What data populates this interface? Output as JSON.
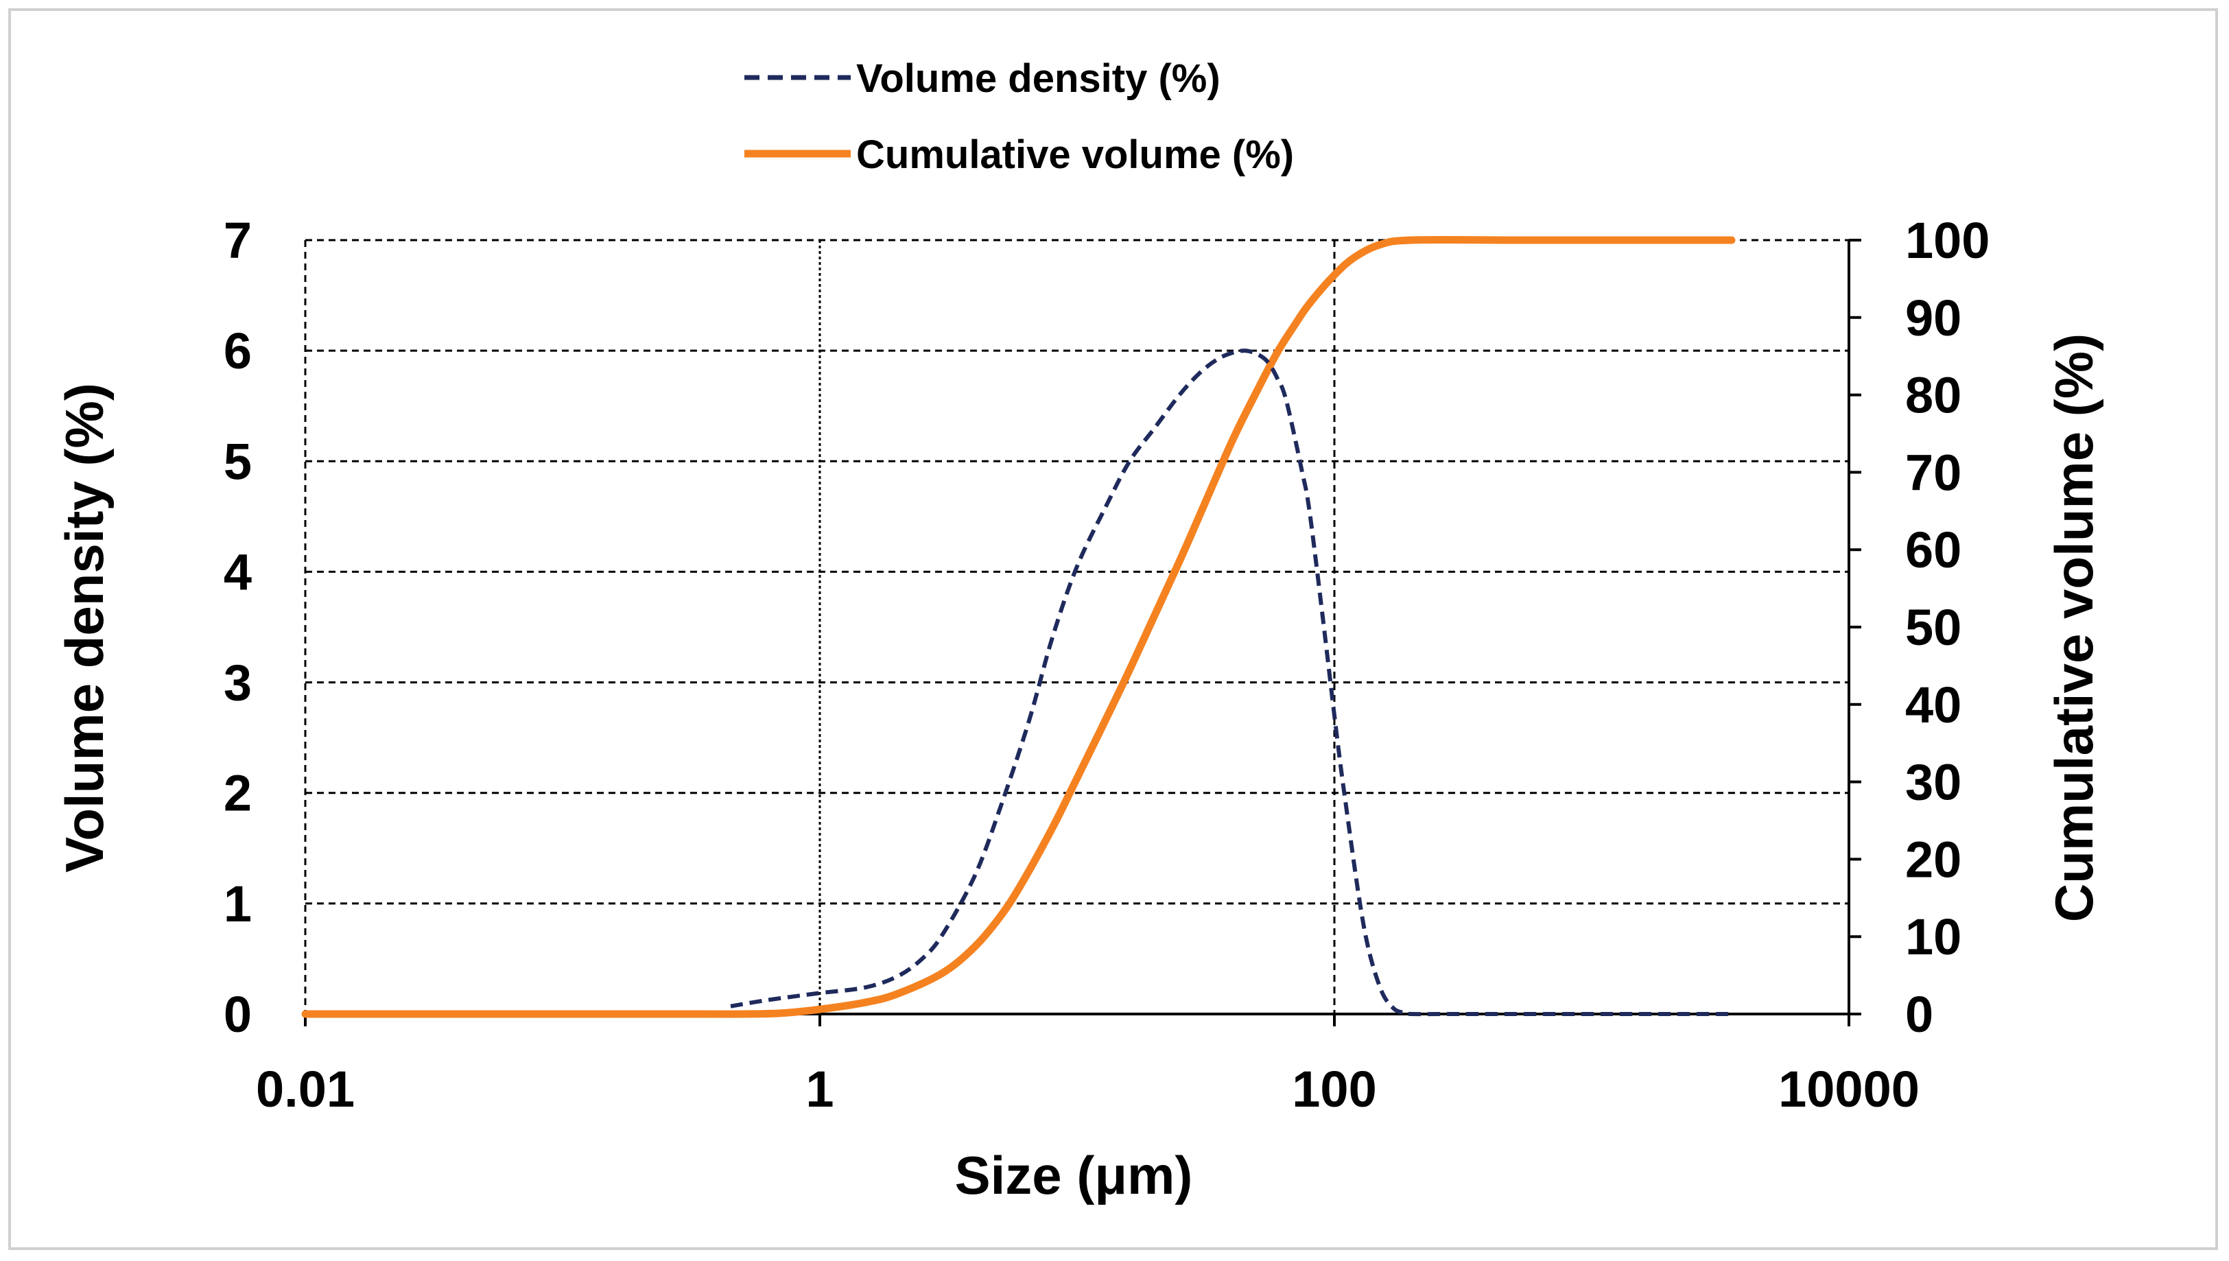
{
  "chart_data": {
    "type": "line",
    "title": "",
    "xlabel": "Size (μm)",
    "ylabel_left": "Volume density (%)",
    "ylabel_right": "Cumulative volume (%)",
    "x_scale": "log",
    "xlim": [
      0.01,
      10000
    ],
    "x_ticks": [
      0.01,
      1,
      100,
      10000
    ],
    "x_tick_labels": [
      "0.01",
      "1",
      "100",
      "10000"
    ],
    "ylim_left": [
      0,
      7
    ],
    "y_left_ticks": [
      "0",
      "1",
      "2",
      "3",
      "4",
      "5",
      "6",
      "7"
    ],
    "ylim_right": [
      0,
      100
    ],
    "y_right_ticks": [
      "0",
      "10",
      "20",
      "30",
      "40",
      "50",
      "60",
      "70",
      "80",
      "90",
      "100"
    ],
    "grid": true,
    "legend_position": "top-center",
    "colors": {
      "density": "#1f2a5c",
      "cumulative": "#f58220"
    },
    "series": [
      {
        "name": "Volume density (%)",
        "axis": "left",
        "style": "dashed",
        "x": [
          0.45,
          0.6,
          0.8,
          1,
          1.5,
          2,
          2.5,
          3,
          4,
          5,
          6.5,
          8,
          10,
          13,
          16,
          20,
          25,
          30,
          35,
          40,
          45,
          50,
          55,
          60,
          65,
          75,
          80,
          90,
          100,
          110,
          130,
          150,
          170,
          190,
          200,
          300,
          1000,
          3500
        ],
        "values": [
          0.07,
          0.12,
          0.16,
          0.19,
          0.24,
          0.34,
          0.5,
          0.72,
          1.25,
          1.85,
          2.65,
          3.4,
          4.05,
          4.6,
          5.0,
          5.3,
          5.6,
          5.8,
          5.92,
          5.98,
          6.0,
          5.97,
          5.9,
          5.75,
          5.55,
          4.9,
          4.55,
          3.6,
          2.7,
          1.95,
          0.8,
          0.25,
          0.05,
          0.01,
          0.0,
          0.0,
          0.0,
          0.0
        ]
      },
      {
        "name": "Cumulative volume (%)",
        "axis": "right",
        "style": "solid",
        "x": [
          0.01,
          0.1,
          0.3,
          0.5,
          0.7,
          1,
          1.5,
          2,
          3,
          4,
          5,
          6,
          8,
          10,
          15,
          20,
          25,
          30,
          40,
          50,
          60,
          70,
          80,
          100,
          120,
          150,
          200,
          500,
          1000,
          3500
        ],
        "values": [
          0,
          0,
          0,
          0,
          0.1,
          0.6,
          1.5,
          2.6,
          5.3,
          8.7,
          12.5,
          16.5,
          24.0,
          30.5,
          42.5,
          51.5,
          58.5,
          64.5,
          74.0,
          80.5,
          85.5,
          89.0,
          91.8,
          95.5,
          97.8,
          99.4,
          100,
          100,
          100,
          100
        ]
      }
    ]
  }
}
